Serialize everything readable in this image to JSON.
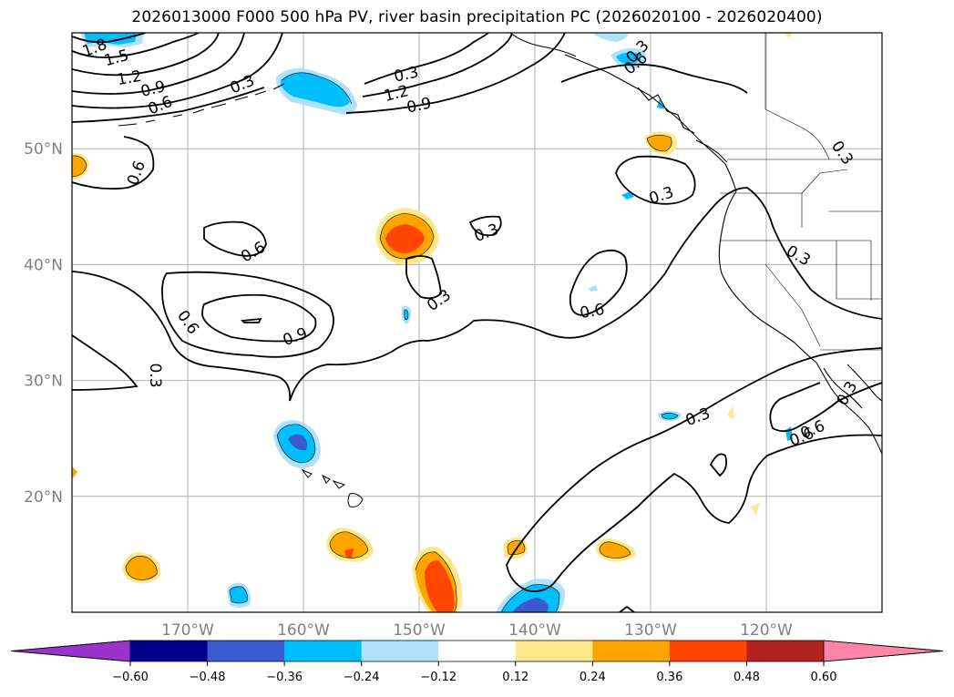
{
  "title": "2026013000 F000 500 hPa PV, river basin precipitation PC (2026020100 - 2026020400)",
  "map": {
    "projection": "PlateCarree",
    "lon_range": [
      -180,
      -110
    ],
    "lat_range": [
      10,
      60
    ],
    "gridlines": true,
    "lon_ticks": [
      "170°W",
      "160°W",
      "150°W",
      "140°W",
      "130°W",
      "120°W"
    ],
    "lat_ticks": [
      "50°N",
      "40°N",
      "30°N",
      "20°N"
    ],
    "contour_labels": [
      "1.8",
      "1.5",
      "1.2",
      "0.9",
      "0.6",
      "0.3",
      "0.3",
      "1.2",
      "0.9",
      "0.6",
      "0.3",
      "0.6",
      "0.6",
      "0.3",
      "0.3",
      "0.3",
      "0.6",
      "0.6",
      "0.9",
      "0.3",
      "0.6",
      "0.3",
      "0.3",
      "0.3",
      "0.6",
      "0.3"
    ]
  },
  "colorbar": {
    "extend": "both",
    "colors": [
      "#9933cc",
      "#00008b",
      "#3a5bd0",
      "#00bfff",
      "#aee2fb",
      "#ffffff",
      "#fde98c",
      "#ffa500",
      "#ff4500",
      "#b22222",
      "#ff85a8"
    ],
    "extend_colors": [
      "#9933cc",
      "#ff85a8"
    ],
    "tick_labels": [
      "−0.60",
      "−0.48",
      "−0.36",
      "−0.24",
      "−0.12",
      "0.12",
      "0.24",
      "0.36",
      "0.48",
      "0.60"
    ]
  }
}
